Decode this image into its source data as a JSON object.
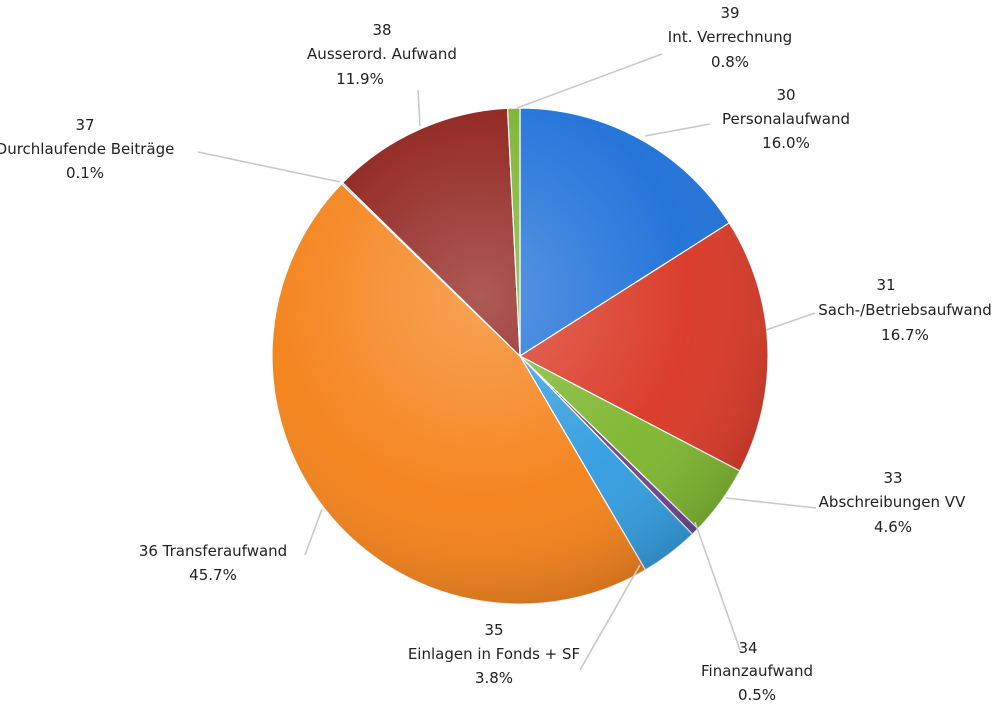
{
  "chart_data": {
    "type": "pie",
    "start_at_12_oclock": true,
    "direction": "clockwise",
    "slices": [
      {
        "code": "30",
        "name": "Personalaufwand",
        "value": 16.0,
        "pct": "16.0%",
        "color": "#1a6ed8"
      },
      {
        "code": "31",
        "name": "Sach-/Betriebsaufwand",
        "value": 16.7,
        "pct": "16.7%",
        "color": "#d93421"
      },
      {
        "code": "33",
        "name": "Abschreibungen VV",
        "value": 4.6,
        "pct": "4.6%",
        "color": "#7bb52a"
      },
      {
        "code": "34",
        "name": "Finanzaufwand",
        "value": 0.5,
        "pct": "0.5%",
        "color": "#6a3f8e"
      },
      {
        "code": "35",
        "name": "Einlagen in Fonds + SF",
        "value": 3.8,
        "pct": "3.8%",
        "color": "#2e9be0"
      },
      {
        "code": "36",
        "name": "Transferaufwand",
        "value": 45.7,
        "pct": "45.7%",
        "color": "#f47f14"
      },
      {
        "code": "37",
        "name": "Durchlaufende Beiträge",
        "value": 0.1,
        "pct": "0.1%",
        "color": "#1d5aa8"
      },
      {
        "code": "38",
        "name": "Ausserord. Aufwand",
        "value": 11.9,
        "pct": "11.9%",
        "color": "#8c1a14"
      },
      {
        "code": "39",
        "name": "Int. Verrechnung",
        "value": 0.8,
        "pct": "0.8%",
        "color": "#78b02a"
      }
    ]
  }
}
